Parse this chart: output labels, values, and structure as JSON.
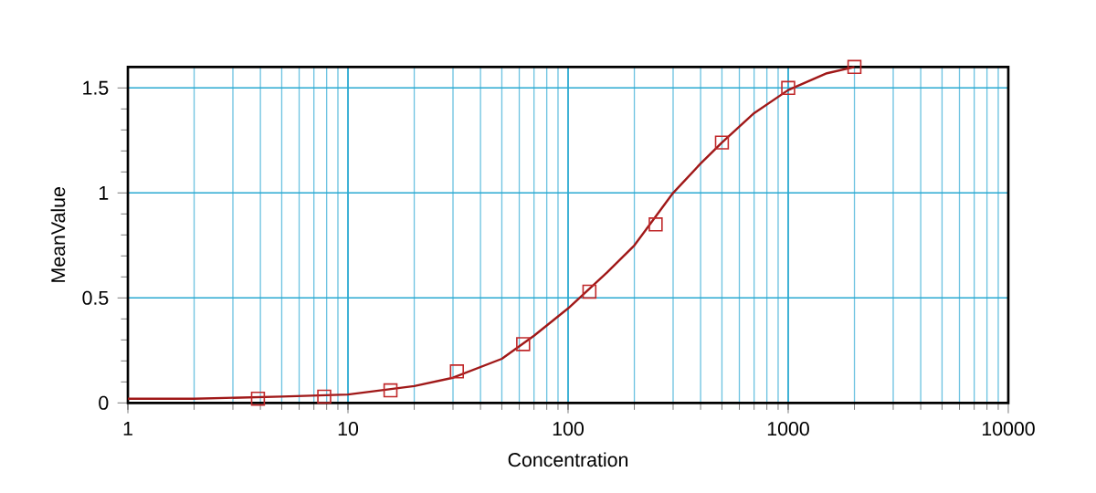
{
  "chart_data": {
    "type": "scatter",
    "xlabel": "Concentration",
    "ylabel": "MeanValue",
    "log": "x",
    "xlim": [
      1,
      10000
    ],
    "xticks": [
      1,
      10,
      100,
      1000,
      10000
    ],
    "ylim": [
      0,
      1.6
    ],
    "yticks": [
      0,
      0.5,
      1,
      1.5
    ],
    "grid": true,
    "marker": "square",
    "series": [
      {
        "color": "#c0282a",
        "x": [
          3.9,
          7.8,
          15.6,
          31.25,
          62.5,
          125,
          250,
          500,
          1000,
          2000
        ],
        "values": [
          0.02,
          0.03,
          0.06,
          0.15,
          0.28,
          0.53,
          0.85,
          1.24,
          1.5,
          1.6
        ]
      },
      {
        "type": "line",
        "marker": "none",
        "line_style": "solid",
        "color": "#a01818",
        "x": [
          1,
          2,
          5,
          10,
          20,
          30,
          50,
          70,
          100,
          150,
          200,
          300,
          400,
          500,
          700,
          1000,
          1500,
          2000
        ],
        "values": [
          0.02,
          0.02,
          0.03,
          0.04,
          0.08,
          0.12,
          0.21,
          0.32,
          0.45,
          0.62,
          0.75,
          1.0,
          1.14,
          1.24,
          1.38,
          1.49,
          1.57,
          1.6
        ]
      }
    ]
  }
}
